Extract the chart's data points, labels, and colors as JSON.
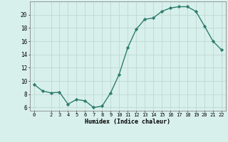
{
  "x": [
    0,
    1,
    2,
    3,
    4,
    5,
    6,
    7,
    8,
    9,
    10,
    11,
    12,
    13,
    14,
    15,
    16,
    17,
    18,
    19,
    20,
    21,
    22
  ],
  "y": [
    9.5,
    8.5,
    8.2,
    8.3,
    6.5,
    7.2,
    7.0,
    6.0,
    6.2,
    8.2,
    11.0,
    15.0,
    17.8,
    19.3,
    19.5,
    20.5,
    21.0,
    21.2,
    21.2,
    20.5,
    18.3,
    16.0,
    14.7
  ],
  "line_color": "#2e7d6e",
  "marker_color": "#2e7d6e",
  "bg_color": "#d8f0ec",
  "grid_color": "#c0d8d4",
  "xlabel": "Humidex (Indice chaleur)",
  "ylim": [
    5.5,
    22.0
  ],
  "xlim": [
    -0.5,
    22.5
  ],
  "yticks": [
    6,
    8,
    10,
    12,
    14,
    16,
    18,
    20
  ],
  "xticks": [
    0,
    2,
    3,
    4,
    5,
    6,
    7,
    8,
    9,
    10,
    11,
    12,
    13,
    14,
    15,
    16,
    17,
    18,
    19,
    20,
    21,
    22
  ]
}
